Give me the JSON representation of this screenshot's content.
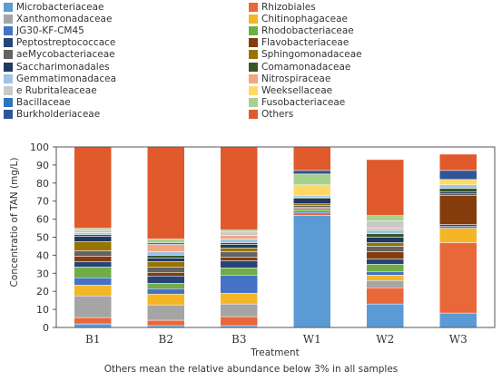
{
  "chart_data": {
    "type": "bar",
    "stacked": true,
    "ylabel": "Concentratio of TAN (mg/L)",
    "xlabel": "Treatment",
    "ylim": [
      0,
      100
    ],
    "yticks": [
      0,
      10,
      20,
      30,
      40,
      50,
      60,
      70,
      80,
      90,
      100
    ],
    "categories": [
      "B1",
      "B2",
      "B3",
      "W1",
      "W2",
      "W3"
    ],
    "legend_placement": "top",
    "series": [
      {
        "name": "Microbacteriaceae",
        "color": "#5b9bd5",
        "values": [
          2,
          1,
          1,
          62,
          13,
          8
        ]
      },
      {
        "name": "Rhizobiales",
        "color": "#e8683a",
        "values": [
          3.5,
          3,
          5,
          1.5,
          9,
          39
        ]
      },
      {
        "name": "Xanthomonadaceae",
        "color": "#a5a5a5",
        "values": [
          12,
          8.5,
          7,
          0,
          4,
          0
        ]
      },
      {
        "name": "Chitinophagaceae",
        "color": "#f4b625",
        "values": [
          6,
          6,
          6,
          0,
          3,
          8
        ]
      },
      {
        "name": "JG30-KF-CM45",
        "color": "#4472c4",
        "values": [
          4,
          3,
          10,
          1,
          2,
          1
        ]
      },
      {
        "name": "Rhodobacteriaceae",
        "color": "#70ad47",
        "values": [
          6,
          3,
          4,
          1,
          4,
          0
        ]
      },
      {
        "name": "Peptostreptococcace",
        "color": "#264478",
        "values": [
          3,
          4,
          4,
          0.5,
          3,
          1
        ]
      },
      {
        "name": "Flavobacteriaceae",
        "color": "#843c0c",
        "values": [
          3,
          2,
          2,
          0.5,
          4,
          16
        ]
      },
      {
        "name": "aeMycobacteriaceae",
        "color": "#636363",
        "values": [
          3,
          3,
          3,
          1,
          3,
          1
        ]
      },
      {
        "name": "Sphingomonadaceae",
        "color": "#997300",
        "values": [
          5,
          3,
          2,
          1,
          2,
          0
        ]
      },
      {
        "name": "Saccharimonadales",
        "color": "#203864",
        "values": [
          3,
          2,
          2,
          3,
          3,
          1
        ]
      },
      {
        "name": "Comamonadaceae",
        "color": "#375623",
        "values": [
          1,
          1.5,
          1,
          0.5,
          2,
          2
        ]
      },
      {
        "name": "Gemmatimonadacea",
        "color": "#9dc3e6",
        "values": [
          1,
          2,
          2,
          1,
          2,
          2
        ]
      },
      {
        "name": "Nitrospiraceae",
        "color": "#f4a582",
        "values": [
          0,
          4,
          2,
          0,
          1,
          0
        ]
      },
      {
        "name": "e Rubritaleaceae",
        "color": "#c9c9c9",
        "values": [
          1.5,
          0,
          2,
          0,
          4,
          0
        ]
      },
      {
        "name": "Weeksellaceae",
        "color": "#ffd966",
        "values": [
          0,
          0,
          0,
          6,
          0,
          3
        ]
      },
      {
        "name": "Bacillaceae",
        "color": "#2e75b6",
        "values": [
          0,
          1,
          0,
          0,
          0,
          0
        ]
      },
      {
        "name": "Fusobacteriaceae",
        "color": "#a9d18e",
        "values": [
          1,
          2,
          1,
          6,
          3,
          0
        ]
      },
      {
        "name": "Burkholderiaceae",
        "color": "#2f5597",
        "values": [
          0,
          0,
          0,
          2,
          0,
          5
        ]
      },
      {
        "name": "Others",
        "color": "#e05a2b",
        "values": [
          45,
          51,
          46,
          13,
          31,
          9
        ]
      }
    ],
    "footnote": "Others mean the relative abundance below 3% in all samples"
  }
}
